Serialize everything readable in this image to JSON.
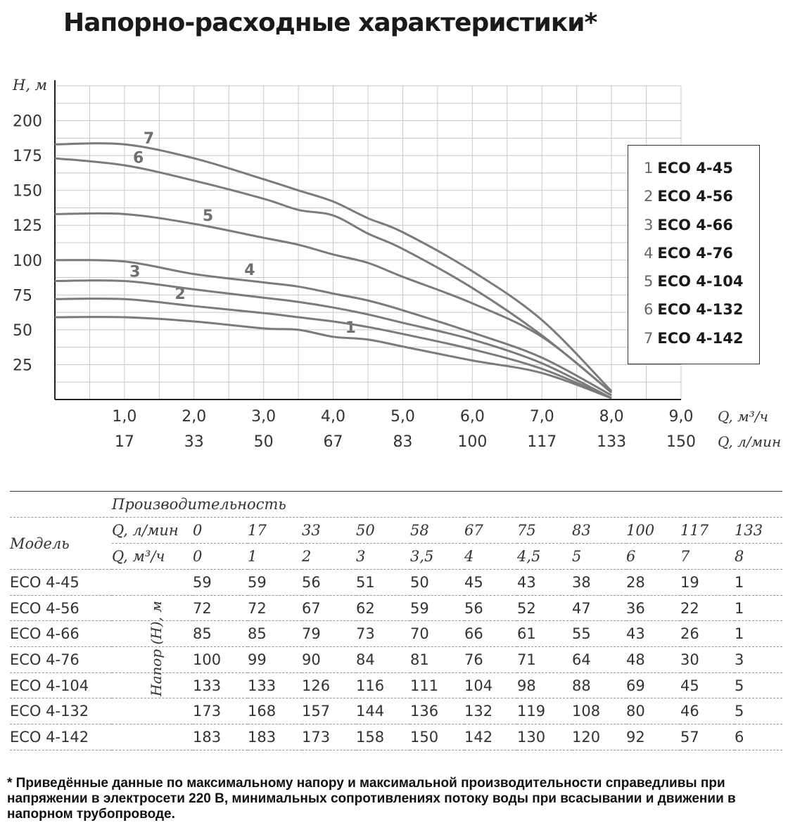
{
  "title": "Напорно-расходные характеристики*",
  "chart_data": {
    "type": "line",
    "ylabel": "H, м",
    "xlabel_m3h": "Q, м³/ч",
    "xlabel_lmin": "Q, л/мин",
    "ylim": [
      0,
      225
    ],
    "xlim": [
      0,
      9
    ],
    "y_ticks": [
      25,
      50,
      75,
      100,
      125,
      150,
      175,
      200
    ],
    "x_ticks_m3h": [
      "1,0",
      "2,0",
      "3,0",
      "4,0",
      "5,0",
      "6,0",
      "7,0",
      "8,0",
      "9,0"
    ],
    "x_ticks_lmin": [
      "17",
      "33",
      "50",
      "67",
      "83",
      "100",
      "117",
      "133",
      "150"
    ],
    "x": [
      0,
      1,
      2,
      3,
      3.5,
      4,
      4.5,
      5,
      6,
      7,
      8
    ],
    "series": [
      {
        "name": "1",
        "values": [
          59,
          59,
          56,
          51,
          50,
          45,
          43,
          38,
          28,
          19,
          1
        ]
      },
      {
        "name": "2",
        "values": [
          72,
          72,
          67,
          62,
          59,
          56,
          52,
          47,
          36,
          22,
          1
        ]
      },
      {
        "name": "3",
        "values": [
          85,
          85,
          79,
          73,
          70,
          66,
          61,
          55,
          43,
          26,
          1
        ]
      },
      {
        "name": "4",
        "values": [
          100,
          99,
          90,
          84,
          81,
          76,
          71,
          64,
          48,
          30,
          3
        ]
      },
      {
        "name": "5",
        "values": [
          133,
          133,
          126,
          116,
          111,
          104,
          98,
          88,
          69,
          45,
          5
        ]
      },
      {
        "name": "6",
        "values": [
          173,
          168,
          157,
          144,
          136,
          132,
          119,
          108,
          80,
          46,
          5
        ]
      },
      {
        "name": "7",
        "values": [
          183,
          183,
          173,
          158,
          150,
          142,
          130,
          120,
          92,
          57,
          6
        ]
      }
    ],
    "curve_labels_x": [
      4.25,
      1.8,
      1.15,
      2.8,
      2.2,
      1.2,
      1.35
    ],
    "colors": {
      "curve": "#7b7b7b",
      "grid": "#c8c8c8",
      "axis": "#222222",
      "curve_label": "#6f6f6f"
    }
  },
  "legend": [
    {
      "num": "1",
      "name": "ECO 4-45"
    },
    {
      "num": "2",
      "name": "ECO 4-56"
    },
    {
      "num": "3",
      "name": "ECO 4-66"
    },
    {
      "num": "4",
      "name": "ECO 4-76"
    },
    {
      "num": "5",
      "name": "ECO 4-104"
    },
    {
      "num": "6",
      "name": "ECO 4-132"
    },
    {
      "num": "7",
      "name": "ECO 4-142"
    }
  ],
  "table": {
    "productivity_label": "Производительность",
    "model_label": "Модель",
    "q_lmin_label": "Q, л/мин",
    "q_m3h_label": "Q, м³/ч",
    "head_label": "Напор (H), м",
    "q_lmin": [
      "0",
      "17",
      "33",
      "50",
      "58",
      "67",
      "75",
      "83",
      "100",
      "117",
      "133"
    ],
    "q_m3h": [
      "0",
      "1",
      "2",
      "3",
      "3,5",
      "4",
      "4,5",
      "5",
      "6",
      "7",
      "8"
    ],
    "rows": [
      {
        "model": "ECO 4-45",
        "values": [
          "59",
          "59",
          "56",
          "51",
          "50",
          "45",
          "43",
          "38",
          "28",
          "19",
          "1"
        ]
      },
      {
        "model": "ECO 4-56",
        "values": [
          "72",
          "72",
          "67",
          "62",
          "59",
          "56",
          "52",
          "47",
          "36",
          "22",
          "1"
        ]
      },
      {
        "model": "ECO 4-66",
        "values": [
          "85",
          "85",
          "79",
          "73",
          "70",
          "66",
          "61",
          "55",
          "43",
          "26",
          "1"
        ]
      },
      {
        "model": "ECO 4-76",
        "values": [
          "100",
          "99",
          "90",
          "84",
          "81",
          "76",
          "71",
          "64",
          "48",
          "30",
          "3"
        ]
      },
      {
        "model": "ECO 4-104",
        "values": [
          "133",
          "133",
          "126",
          "116",
          "111",
          "104",
          "98",
          "88",
          "69",
          "45",
          "5"
        ]
      },
      {
        "model": "ECO 4-132",
        "values": [
          "173",
          "168",
          "157",
          "144",
          "136",
          "132",
          "119",
          "108",
          "80",
          "46",
          "5"
        ]
      },
      {
        "model": "ECO 4-142",
        "values": [
          "183",
          "183",
          "173",
          "158",
          "150",
          "142",
          "130",
          "120",
          "92",
          "57",
          "6"
        ]
      }
    ]
  },
  "footnote": "* Приведённые данные по максимальному напору и максимальной производительности справедливы при напряжении в электросети 220 В, минимальных сопротивлениях потоку воды при всасывании и движении в напорном трубопроводе."
}
